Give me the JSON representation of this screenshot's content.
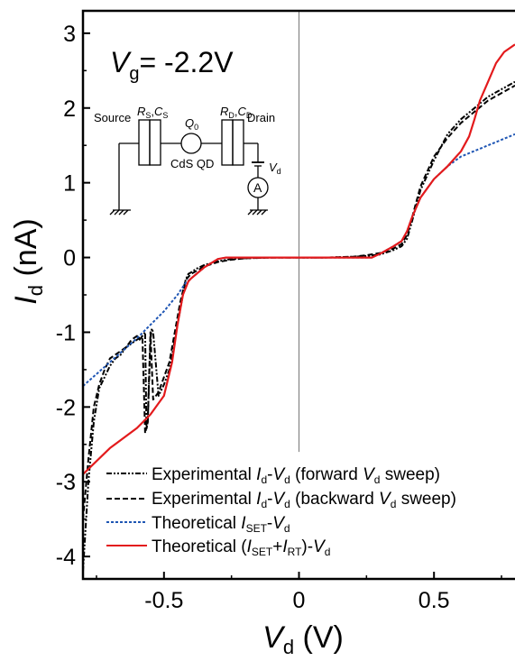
{
  "chart_data": {
    "type": "line",
    "xlabel_main": "V",
    "xlabel_sub": "d",
    "xlabel_unit": " (V)",
    "ylabel_main": "I",
    "ylabel_sub": "d",
    "ylabel_unit": " (nA)",
    "xlim": [
      -0.8,
      0.8
    ],
    "ylim": [
      -4.3,
      3.3
    ],
    "xticks": [
      -0.5,
      0,
      0.5
    ],
    "xtick_labels": [
      "-0.5",
      "0",
      "0.5"
    ],
    "yticks": [
      -4,
      -3,
      -2,
      -1,
      0,
      1,
      2,
      3
    ],
    "ytick_labels": [
      "-4",
      "-3",
      "-2",
      "-1",
      "0",
      "1",
      "2",
      "3"
    ],
    "vg_label": {
      "main": "V",
      "sub": "g",
      "rest": "= -2.2V"
    },
    "legend": {
      "placement": "bottom-right",
      "entries": [
        {
          "pre": "Experimental ",
          "i": "I",
          "isub": "d",
          "mid": "-",
          "v": "V",
          "vsub": "d",
          "post": " (forward ",
          "v2": "V",
          "v2sub": "d",
          "end": " sweep)"
        },
        {
          "pre": "Experimental ",
          "i": "I",
          "isub": "d",
          "mid": "-",
          "v": "V",
          "vsub": "d",
          "post": " (backward ",
          "v2": "V",
          "v2sub": "d",
          "end": " sweep)"
        },
        {
          "pre": "Theoretical ",
          "i": "I",
          "isub": "SET",
          "mid": "-",
          "v": "V",
          "vsub": "d"
        },
        {
          "pre": "Theoretical (",
          "i": "I",
          "isub": "SET",
          "plus": "+",
          "i2": "I",
          "i2sub": "RT",
          "close": ")",
          "mid": "-",
          "v": "V",
          "vsub": "d"
        }
      ]
    },
    "series": [
      {
        "style": "forward-experimental",
        "color": "#000000",
        "x": [
          -0.8,
          -0.78,
          -0.76,
          -0.74,
          -0.72,
          -0.7,
          -0.68,
          -0.66,
          -0.64,
          -0.62,
          -0.6,
          -0.58,
          -0.57,
          -0.565,
          -0.56,
          -0.55,
          -0.545,
          -0.54,
          -0.52,
          -0.5,
          -0.48,
          -0.46,
          -0.44,
          -0.42,
          -0.41,
          -0.4,
          -0.38,
          -0.35,
          -0.3,
          -0.25,
          -0.2,
          -0.1,
          0,
          0.1,
          0.2,
          0.25,
          0.3,
          0.35,
          0.38,
          0.4,
          0.42,
          0.45,
          0.5,
          0.55,
          0.6,
          0.65,
          0.7,
          0.75,
          0.8
        ],
        "y": [
          -4.2,
          -3.0,
          -2.2,
          -1.75,
          -1.6,
          -1.45,
          -1.35,
          -1.3,
          -1.2,
          -1.15,
          -1.1,
          -1.05,
          -1.0,
          -2.3,
          -2.2,
          -1.1,
          -0.95,
          -1.0,
          -1.85,
          -1.7,
          -1.5,
          -1.1,
          -0.7,
          -0.3,
          -0.22,
          -0.2,
          -0.15,
          -0.1,
          -0.05,
          -0.02,
          -0.01,
          0,
          0,
          0,
          0.01,
          0.02,
          0.04,
          0.1,
          0.15,
          0.25,
          0.5,
          0.9,
          1.3,
          1.65,
          1.85,
          2.0,
          2.15,
          2.25,
          2.35
        ]
      },
      {
        "style": "backward-experimental",
        "color": "#000000",
        "x": [
          -0.8,
          -0.78,
          -0.76,
          -0.74,
          -0.72,
          -0.7,
          -0.68,
          -0.66,
          -0.64,
          -0.62,
          -0.6,
          -0.59,
          -0.58,
          -0.57,
          -0.56,
          -0.55,
          -0.54,
          -0.52,
          -0.5,
          -0.48,
          -0.46,
          -0.44,
          -0.42,
          -0.4,
          -0.38,
          -0.35,
          -0.3,
          -0.25,
          -0.2,
          -0.1,
          0,
          0.1,
          0.2,
          0.25,
          0.3,
          0.35,
          0.38,
          0.4,
          0.42,
          0.45,
          0.5,
          0.55,
          0.6,
          0.65,
          0.7,
          0.75,
          0.8
        ],
        "y": [
          -3.5,
          -2.7,
          -2.0,
          -1.7,
          -1.5,
          -1.35,
          -1.3,
          -1.25,
          -1.2,
          -1.1,
          -1.05,
          -1.1,
          -1.05,
          -2.35,
          -2.2,
          -1.0,
          -1.9,
          -1.8,
          -1.6,
          -1.4,
          -1.0,
          -0.6,
          -0.3,
          -0.22,
          -0.18,
          -0.12,
          -0.06,
          -0.03,
          -0.01,
          0,
          0,
          0,
          0.01,
          0.03,
          0.06,
          0.12,
          0.18,
          0.3,
          0.55,
          0.95,
          1.35,
          1.6,
          1.8,
          1.95,
          2.1,
          2.2,
          2.3
        ]
      },
      {
        "style": "theoretical-set",
        "color": "#1f56b4",
        "x": [
          -0.8,
          -0.7,
          -0.6,
          -0.5,
          -0.45,
          -0.42,
          -0.4,
          -0.35,
          -0.3,
          -0.27,
          0,
          0.27,
          0.3,
          0.35,
          0.38,
          0.4,
          0.42,
          0.45,
          0.5,
          0.55,
          0.6,
          0.7,
          0.8
        ],
        "y": [
          -1.72,
          -1.4,
          -1.08,
          -0.72,
          -0.5,
          -0.34,
          -0.28,
          -0.13,
          -0.02,
          0,
          0,
          0,
          0.05,
          0.15,
          0.22,
          0.35,
          0.55,
          0.8,
          1.05,
          1.22,
          1.35,
          1.5,
          1.65
        ]
      },
      {
        "style": "theoretical-set-rt",
        "color": "#e31a1c",
        "x": [
          -0.8,
          -0.7,
          -0.6,
          -0.55,
          -0.5,
          -0.47,
          -0.45,
          -0.43,
          -0.41,
          -0.4,
          -0.35,
          -0.3,
          -0.27,
          0,
          0.27,
          0.3,
          0.35,
          0.38,
          0.4,
          0.42,
          0.45,
          0.5,
          0.55,
          0.6,
          0.63,
          0.65,
          0.67,
          0.7,
          0.73,
          0.76,
          0.8
        ],
        "y": [
          -2.9,
          -2.55,
          -2.28,
          -2.1,
          -1.85,
          -1.4,
          -0.9,
          -0.5,
          -0.32,
          -0.28,
          -0.13,
          -0.02,
          0,
          0,
          0,
          0.05,
          0.15,
          0.22,
          0.35,
          0.55,
          0.8,
          1.05,
          1.22,
          1.42,
          1.62,
          1.85,
          2.1,
          2.35,
          2.6,
          2.75,
          2.85
        ]
      }
    ],
    "inset": {
      "source": "Source",
      "drain": "Drain",
      "qd": "CdS QD",
      "rs_r": "R",
      "rs_rsub": "S",
      "rs_c": "C",
      "rs_csub": "S",
      "rd_r": "R",
      "rd_rsub": "D",
      "rd_c": "C",
      "rd_csub": "D",
      "q_main": "Q",
      "q_sub": "0",
      "vd_main": "V",
      "vd_sub": "d",
      "ammeter": "A"
    }
  }
}
